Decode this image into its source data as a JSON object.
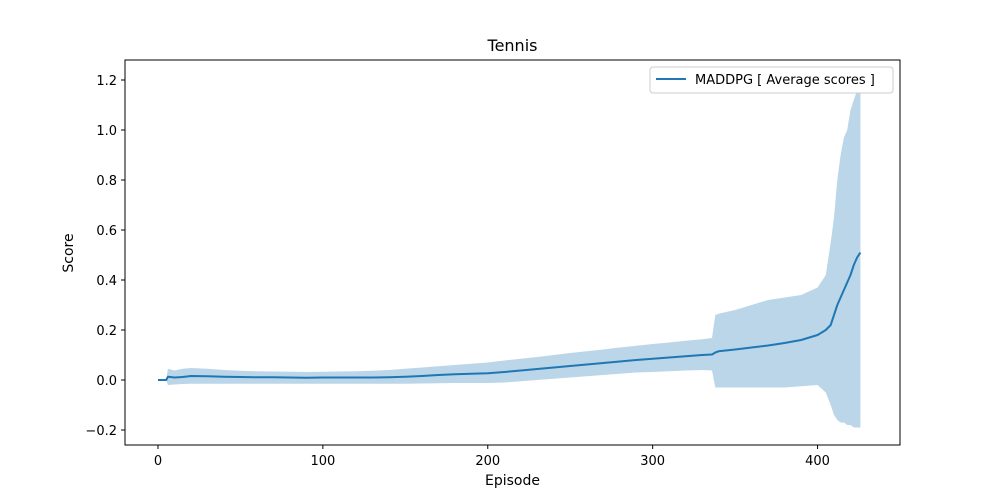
{
  "chart_data": {
    "type": "line",
    "title": "Tennis",
    "xlabel": "Episode",
    "ylabel": "Score",
    "xlim": [
      -20,
      450
    ],
    "ylim": [
      -0.26,
      1.28
    ],
    "xticks": [
      0,
      100,
      200,
      300,
      400
    ],
    "xtick_labels": [
      "0",
      "100",
      "200",
      "300",
      "400"
    ],
    "yticks": [
      -0.2,
      0.0,
      0.2,
      0.4,
      0.6,
      0.8,
      1.0,
      1.2
    ],
    "ytick_labels": [
      "−0.2",
      "0.0",
      "0.2",
      "0.4",
      "0.6",
      "0.8",
      "1.0",
      "1.2"
    ],
    "grid": false,
    "legend": {
      "position": "top-right",
      "entries": [
        "MADDPG [ Average scores ]"
      ]
    },
    "colors": {
      "line": "#1f77b4",
      "band": "#1f77b4"
    },
    "series": [
      {
        "name": "MADDPG [ Average scores ]",
        "x": [
          0,
          5,
          6,
          10,
          15,
          20,
          30,
          40,
          50,
          60,
          70,
          80,
          90,
          100,
          110,
          120,
          130,
          140,
          150,
          160,
          170,
          180,
          190,
          200,
          210,
          220,
          230,
          240,
          250,
          260,
          270,
          280,
          290,
          300,
          310,
          320,
          330,
          336,
          338,
          340,
          350,
          360,
          370,
          380,
          390,
          400,
          405,
          408,
          410,
          412,
          414,
          416,
          418,
          420,
          422,
          424,
          426
        ],
        "y": [
          0.0,
          0.0,
          0.013,
          0.01,
          0.012,
          0.016,
          0.015,
          0.013,
          0.012,
          0.011,
          0.011,
          0.01,
          0.009,
          0.01,
          0.01,
          0.01,
          0.01,
          0.011,
          0.013,
          0.016,
          0.02,
          0.023,
          0.025,
          0.027,
          0.032,
          0.038,
          0.044,
          0.05,
          0.056,
          0.062,
          0.068,
          0.074,
          0.08,
          0.085,
          0.09,
          0.095,
          0.1,
          0.102,
          0.11,
          0.115,
          0.122,
          0.13,
          0.138,
          0.148,
          0.16,
          0.18,
          0.2,
          0.22,
          0.26,
          0.3,
          0.33,
          0.36,
          0.39,
          0.42,
          0.46,
          0.49,
          0.51
        ],
        "upper": [
          0.0,
          0.0,
          0.045,
          0.038,
          0.045,
          0.048,
          0.045,
          0.04,
          0.037,
          0.035,
          0.034,
          0.033,
          0.032,
          0.033,
          0.034,
          0.035,
          0.037,
          0.04,
          0.045,
          0.05,
          0.055,
          0.06,
          0.065,
          0.07,
          0.078,
          0.085,
          0.092,
          0.1,
          0.108,
          0.115,
          0.122,
          0.13,
          0.137,
          0.144,
          0.15,
          0.157,
          0.163,
          0.168,
          0.26,
          0.265,
          0.28,
          0.3,
          0.32,
          0.33,
          0.34,
          0.37,
          0.42,
          0.55,
          0.65,
          0.8,
          0.9,
          0.97,
          1.0,
          1.08,
          1.12,
          1.16,
          1.2
        ],
        "lower": [
          0.0,
          0.0,
          -0.02,
          -0.018,
          -0.016,
          -0.015,
          -0.015,
          -0.015,
          -0.015,
          -0.015,
          -0.015,
          -0.015,
          -0.015,
          -0.015,
          -0.015,
          -0.015,
          -0.015,
          -0.015,
          -0.015,
          -0.014,
          -0.013,
          -0.012,
          -0.012,
          -0.012,
          -0.01,
          -0.005,
          0.0,
          0.005,
          0.01,
          0.015,
          0.02,
          0.025,
          0.03,
          0.032,
          0.035,
          0.038,
          0.04,
          0.038,
          -0.03,
          -0.03,
          -0.03,
          -0.03,
          -0.03,
          -0.03,
          -0.025,
          -0.02,
          -0.05,
          -0.1,
          -0.14,
          -0.16,
          -0.17,
          -0.17,
          -0.18,
          -0.18,
          -0.19,
          -0.19,
          -0.19
        ]
      }
    ]
  }
}
